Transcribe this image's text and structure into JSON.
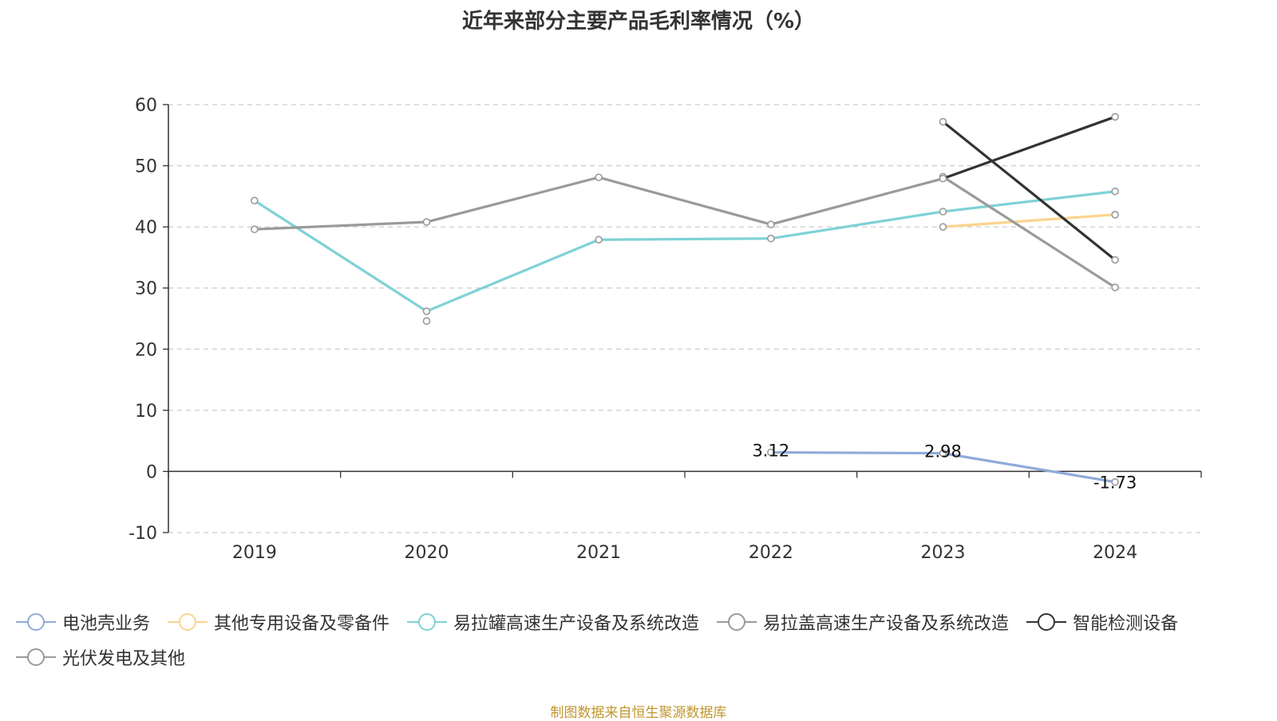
{
  "title": "近年来部分主要产品毛利率情况（%）",
  "source_note": "制图数据来自恒生聚源数据库",
  "chart_data": {
    "type": "line",
    "title": "近年来部分主要产品毛利率情况（%）",
    "x": [
      "2019",
      "2020",
      "2021",
      "2022",
      "2023",
      "2024"
    ],
    "ylim": [
      -10,
      60
    ],
    "yticks": [
      "60",
      "50",
      "40",
      "30",
      "20",
      "10",
      "0",
      "-10"
    ],
    "grid": true,
    "legend_position": "bottom",
    "series": [
      {
        "name": "电池壳业务",
        "color": "#8fabd8",
        "values": [
          null,
          null,
          null,
          3.12,
          2.98,
          -1.73
        ],
        "labels": [
          null,
          null,
          null,
          "3.12",
          "2.98",
          "-1.73"
        ]
      },
      {
        "name": "其他专用设备及零备件",
        "color": "#fbd48e",
        "values": [
          null,
          null,
          null,
          null,
          40.0,
          42.0
        ]
      },
      {
        "name": "易拉罐高速生产设备及系统改造",
        "color": "#7fd2d6",
        "values": [
          44.3,
          26.2,
          37.9,
          38.1,
          42.5,
          45.8
        ]
      },
      {
        "name": "易拉盖高速生产设备及系统改造",
        "color": "#9a9a9a",
        "values": [
          null,
          24.6,
          null,
          null,
          48.2,
          30.1
        ]
      },
      {
        "name": "智能检测设备",
        "color": "#333333",
        "values": [
          null,
          null,
          null,
          null,
          57.2,
          34.6
        ]
      },
      {
        "name": "光伏发电及其他",
        "color": "#9a9a9a",
        "values": [
          39.6,
          40.8,
          48.1,
          40.4,
          47.9,
          58.0
        ],
        "line_colors": [
          null,
          "#9a9a9a",
          "#9a9a9a",
          "#9a9a9a",
          "#9a9a9a",
          "#333333"
        ]
      }
    ]
  }
}
